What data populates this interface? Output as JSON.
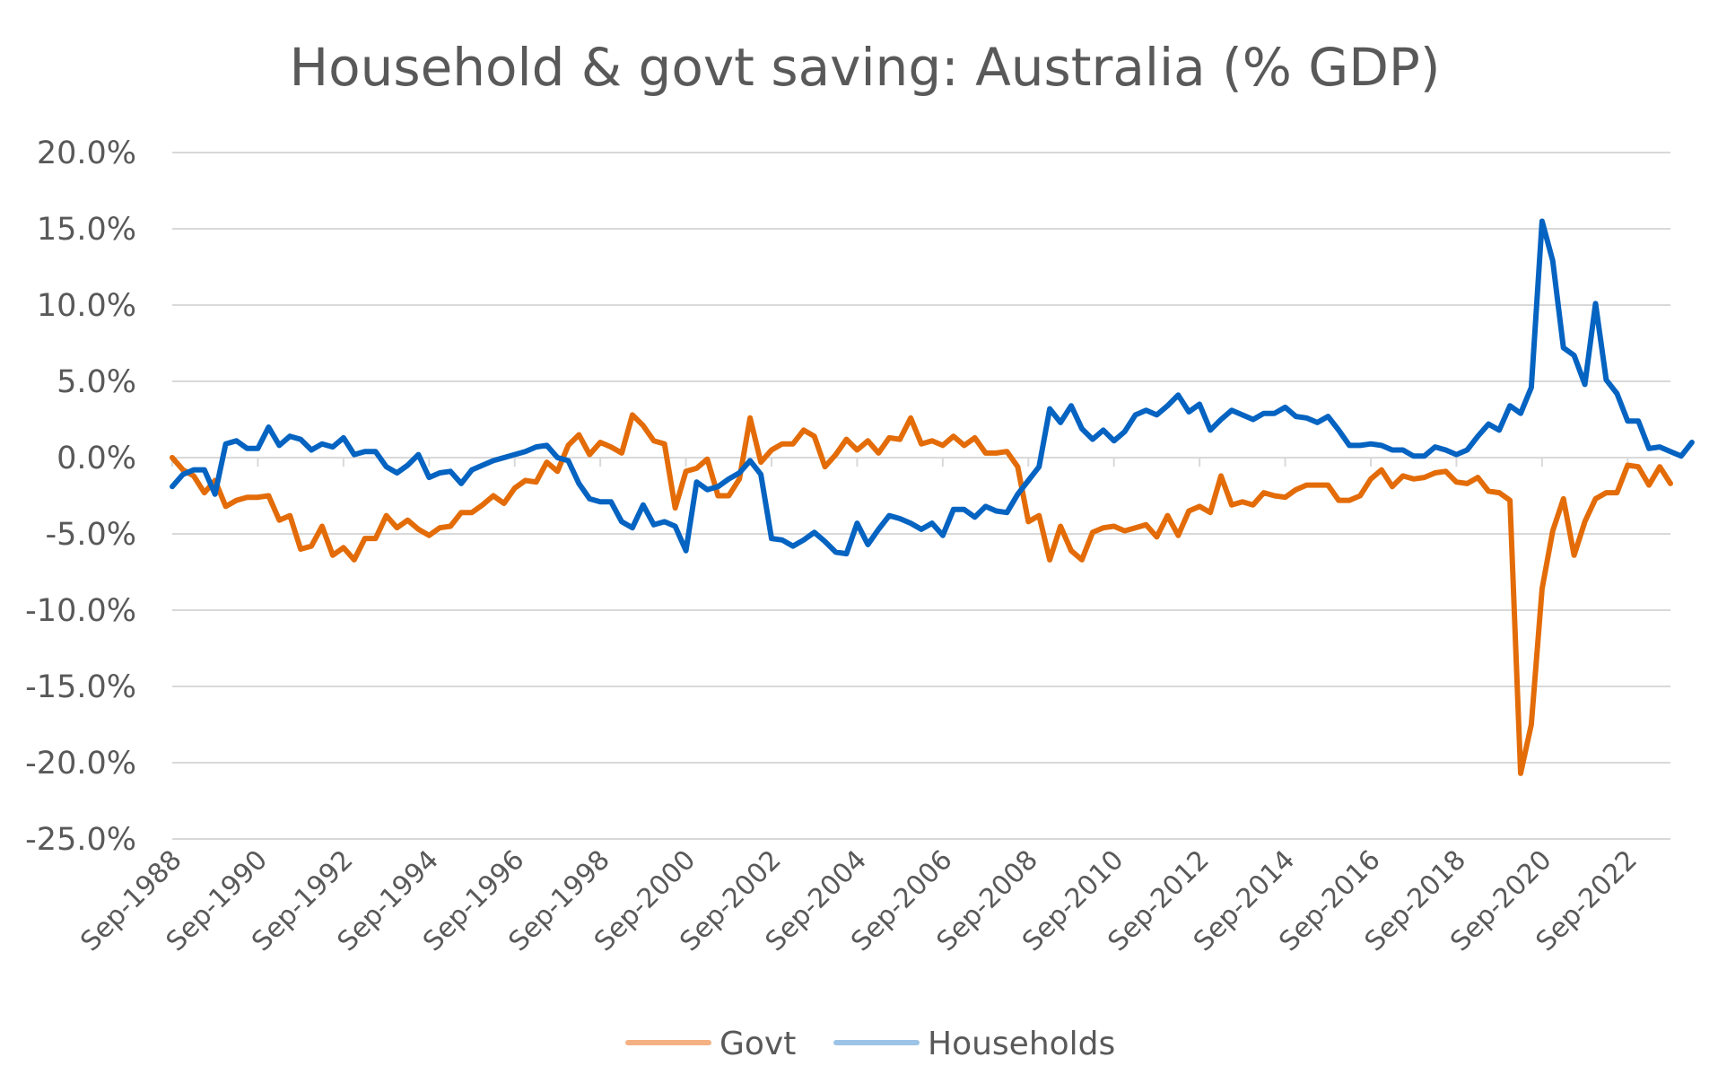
{
  "chart_data": {
    "type": "line",
    "title": "Household & govt saving: Australia (% GDP)",
    "xlabel": "",
    "ylabel": "",
    "ylim": [
      -25,
      20
    ],
    "yticks": [
      20,
      15,
      10,
      5,
      0,
      -5,
      -10,
      -15,
      -20,
      -25
    ],
    "ytick_labels": [
      "20.0%",
      "15.0%",
      "10.0%",
      "5.0%",
      "0.0%",
      "-5.0%",
      "-10.0%",
      "-15.0%",
      "-20.0%",
      "-25.0%"
    ],
    "xtick_labels": [
      "Sep-1988",
      "Sep-1990",
      "Sep-1992",
      "Sep-1994",
      "Sep-1996",
      "Sep-1998",
      "Sep-2000",
      "Sep-2002",
      "Sep-2004",
      "Sep-2006",
      "Sep-2008",
      "Sep-2010",
      "Sep-2012",
      "Sep-2014",
      "Sep-2016",
      "Sep-2018",
      "Sep-2020",
      "Sep-2022"
    ],
    "x_start": "Sep-1988",
    "frequency": "quarterly",
    "grid": true,
    "legend_position": "bottom",
    "series": [
      {
        "name": "Govt",
        "color": "#E36C09",
        "values": [
          0,
          -0.8,
          -1.2,
          -2.3,
          -1.5,
          -3.2,
          -2.8,
          -2.6,
          -2.6,
          -2.5,
          -4.1,
          -3.8,
          -6,
          -5.8,
          -4.5,
          -6.4,
          -5.9,
          -6.7,
          -5.3,
          -5.3,
          -3.8,
          -4.6,
          -4.1,
          -4.7,
          -5.1,
          -4.6,
          -4.5,
          -3.6,
          -3.6,
          -3.1,
          -2.5,
          -3,
          -2,
          -1.5,
          -1.6,
          -0.3,
          -0.9,
          0.8,
          1.5,
          0.2,
          1,
          0.7,
          0.3,
          2.8,
          2.1,
          1.1,
          0.9,
          -3.3,
          -0.9,
          -0.7,
          -0.1,
          -2.5,
          -2.5,
          -1.4,
          2.6,
          -0.3,
          0.5,
          0.9,
          0.9,
          1.8,
          1.4,
          -0.6,
          0.2,
          1.2,
          0.5,
          1.1,
          0.3,
          1.3,
          1.2,
          2.6,
          0.9,
          1.1,
          0.8,
          1.4,
          0.8,
          1.3,
          0.3,
          0.3,
          0.4,
          -0.6,
          -4.2,
          -3.8,
          -6.7,
          -4.5,
          -6.1,
          -6.7,
          -4.9,
          -4.6,
          -4.5,
          -4.8,
          -4.6,
          -4.4,
          -5.2,
          -3.8,
          -5.1,
          -3.5,
          -3.2,
          -3.6,
          -1.2,
          -3.1,
          -2.9,
          -3.1,
          -2.3,
          -2.5,
          -2.6,
          -2.1,
          -1.8,
          -1.8,
          -1.8,
          -2.8,
          -2.8,
          -2.5,
          -1.4,
          -0.8,
          -1.9,
          -1.2,
          -1.4,
          -1.3,
          -1,
          -0.9,
          -1.6,
          -1.7,
          -1.3,
          -2.2,
          -2.3,
          -2.8,
          -20.7,
          -17.5,
          -8.6,
          -4.8,
          -2.7,
          -6.4,
          -4.2,
          -2.7,
          -2.3,
          -2.3,
          -0.5,
          -0.6,
          -1.8,
          -0.6,
          -1.7
        ]
      },
      {
        "name": "Households",
        "color": "#0563C1",
        "values": [
          -1.9,
          -1.1,
          -0.8,
          -0.8,
          -2.4,
          0.9,
          1.1,
          0.6,
          0.6,
          2,
          0.8,
          1.4,
          1.2,
          0.5,
          0.9,
          0.7,
          1.3,
          0.2,
          0.4,
          0.4,
          -0.6,
          -1,
          -0.5,
          0.2,
          -1.3,
          -1,
          -0.9,
          -1.7,
          -0.8,
          -0.5,
          -0.2,
          0,
          0.2,
          0.4,
          0.7,
          0.8,
          0,
          -0.2,
          -1.7,
          -2.7,
          -2.9,
          -2.9,
          -4.2,
          -4.6,
          -3.1,
          -4.4,
          -4.2,
          -4.5,
          -6.1,
          -1.6,
          -2.1,
          -1.9,
          -1.4,
          -1,
          -0.2,
          -1.1,
          -5.3,
          -5.4,
          -5.8,
          -5.4,
          -4.9,
          -5.5,
          -6.2,
          -6.3,
          -4.3,
          -5.7,
          -4.7,
          -3.8,
          -4,
          -4.3,
          -4.7,
          -4.3,
          -5.1,
          -3.4,
          -3.4,
          -3.9,
          -3.2,
          -3.5,
          -3.6,
          -2.4,
          -1.5,
          -0.6,
          3.2,
          2.3,
          3.4,
          1.9,
          1.2,
          1.8,
          1.1,
          1.7,
          2.8,
          3.1,
          2.8,
          3.4,
          4.1,
          3,
          3.5,
          1.8,
          2.5,
          3.1,
          2.8,
          2.5,
          2.9,
          2.9,
          3.3,
          2.7,
          2.6,
          2.3,
          2.7,
          1.8,
          0.8,
          0.8,
          0.9,
          0.8,
          0.5,
          0.5,
          0.1,
          0.1,
          0.7,
          0.5,
          0.2,
          0.5,
          1.4,
          2.2,
          1.8,
          3.4,
          2.9,
          4.6,
          15.5,
          12.9,
          7.2,
          6.7,
          4.8,
          10.1,
          5.1,
          4.2,
          2.4,
          2.4,
          0.6,
          0.7,
          0.4,
          0.1,
          1
        ]
      }
    ]
  }
}
